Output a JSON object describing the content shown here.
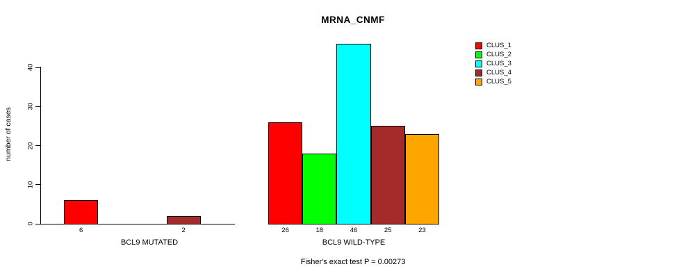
{
  "chart_data": {
    "type": "bar",
    "title": "MRNA_CNMF",
    "ylabel": "number of cases",
    "xlabel": "",
    "ylim": [
      0,
      46
    ],
    "yticks": [
      0,
      10,
      20,
      30,
      40
    ],
    "grid": false,
    "legend_position": "top-right",
    "categories": [
      "CLUS_1",
      "CLUS_2",
      "CLUS_3",
      "CLUS_4",
      "CLUS_5"
    ],
    "legend": [
      {
        "label": "CLUS_1",
        "color": "#ff0000"
      },
      {
        "label": "CLUS_2",
        "color": "#00ff00"
      },
      {
        "label": "CLUS_3",
        "color": "#00ffff"
      },
      {
        "label": "CLUS_4",
        "color": "#a52a2a"
      },
      {
        "label": "CLUS_5",
        "color": "#ffa500"
      }
    ],
    "groups": [
      {
        "label": "BCL9 MUTATED",
        "values": [
          6,
          0,
          0,
          2,
          0
        ],
        "bar_labels": [
          "6",
          "",
          "",
          "2",
          ""
        ]
      },
      {
        "label": "BCL9 WILD-TYPE",
        "values": [
          26,
          18,
          46,
          25,
          23
        ],
        "bar_labels": [
          "26",
          "18",
          "46",
          "25",
          "23"
        ]
      }
    ],
    "caption": "Fisher's exact test P = 0.00273"
  }
}
